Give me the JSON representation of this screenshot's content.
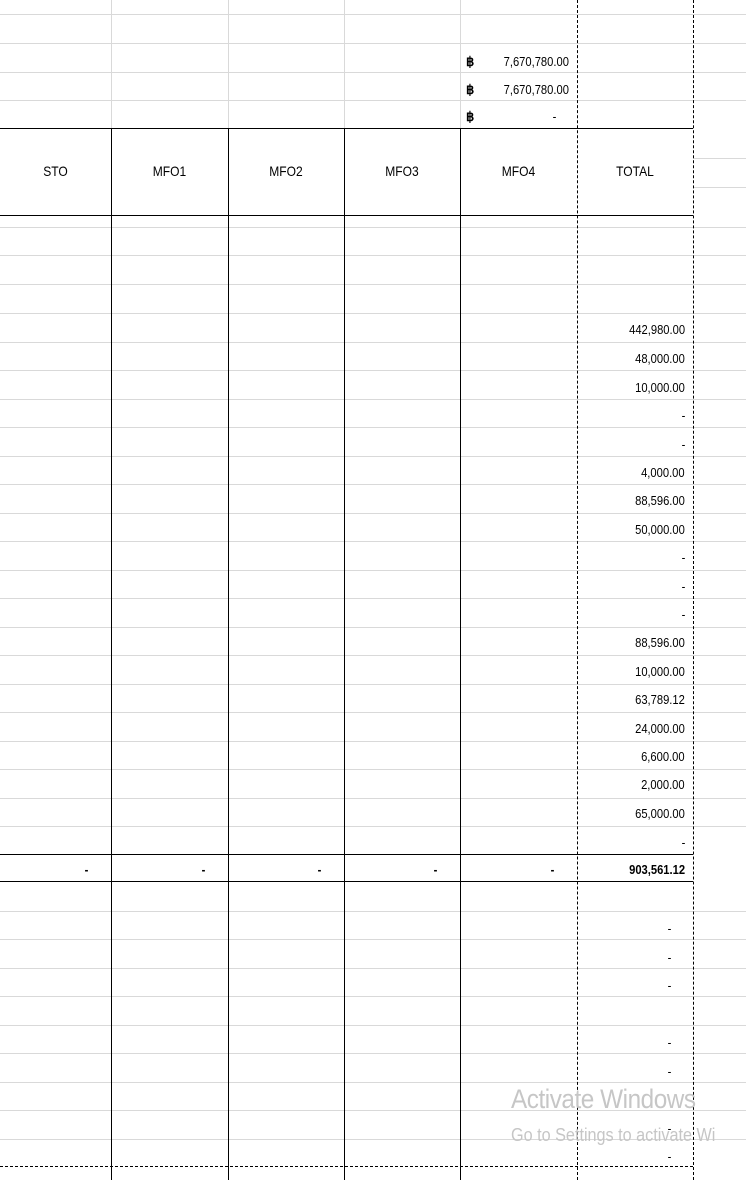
{
  "top_amounts": [
    {
      "symbol": "฿",
      "amount": "7,670,780.00"
    },
    {
      "symbol": "฿",
      "amount": "7,670,780.00"
    },
    {
      "symbol": "฿",
      "amount": "-"
    }
  ],
  "headers": [
    "STO",
    "MFO1",
    "MFO2",
    "MFO3",
    "MFO4",
    "TOTAL"
  ],
  "total_values": [
    "442,980.00",
    "48,000.00",
    "10,000.00",
    "-",
    "-",
    "4,000.00",
    "88,596.00",
    "50,000.00",
    "-",
    "-",
    "-",
    "88,596.00",
    "10,000.00",
    "63,789.12",
    "24,000.00",
    "6,600.00",
    "2,000.00",
    "65,000.00",
    "-"
  ],
  "sum_row": {
    "sto": "-",
    "mfo1": "-",
    "mfo2": "-",
    "mfo3": "-",
    "mfo4": "-",
    "total": "903,561.12"
  },
  "lower_values": [
    "-",
    "-",
    "-",
    "-",
    "-",
    "-",
    "-"
  ],
  "watermark": {
    "title": "Activate Windows",
    "subtitle": "Go to Settings to activate Wi"
  }
}
